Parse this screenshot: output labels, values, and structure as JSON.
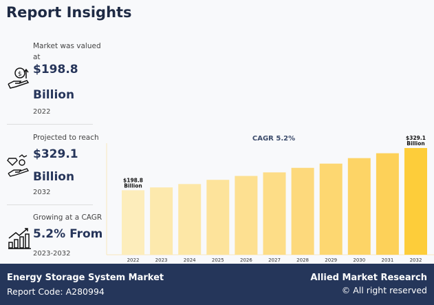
{
  "title": "Report Insights",
  "stats": [
    {
      "label": "Market was valued at",
      "value1": "$198.8",
      "value2": "Billion",
      "year": "2022",
      "icon": "hand-money-growth-icon"
    },
    {
      "label": "Projected to reach",
      "value1": "$329.1",
      "value2": "Billion",
      "year": "2032",
      "icon": "hand-diamond-coin-icon"
    },
    {
      "label": "Growing at a CAGR",
      "value1": "5.2% From",
      "year": "2023-2032",
      "icon": "bar-chart-growth-icon"
    }
  ],
  "chart_data": {
    "type": "bar",
    "title": "CAGR 5.2%",
    "categories": [
      "2022",
      "2023",
      "2024",
      "2025",
      "2026",
      "2027",
      "2028",
      "2029",
      "2030",
      "2031",
      "2032"
    ],
    "values": [
      198.8,
      207.6,
      218,
      231,
      243,
      254,
      268,
      281,
      298,
      313,
      329.1
    ],
    "data_labels": {
      "0": [
        "$198.8",
        "Billion"
      ],
      "10": [
        "$329.1",
        "Billion"
      ]
    },
    "colors": [
      "#fdedbb",
      "#fde9ad",
      "#fde7a6",
      "#fde39b",
      "#fde091",
      "#fddd87",
      "#fdd97c",
      "#fdd771",
      "#fdd466",
      "#fdd159",
      "#fdcd3a"
    ],
    "grid": false
  },
  "footer": {
    "market": "Energy Storage System Market",
    "code": "Report Code: A280994",
    "brand": "Allied Market Research",
    "rights": "© All right reserved"
  }
}
